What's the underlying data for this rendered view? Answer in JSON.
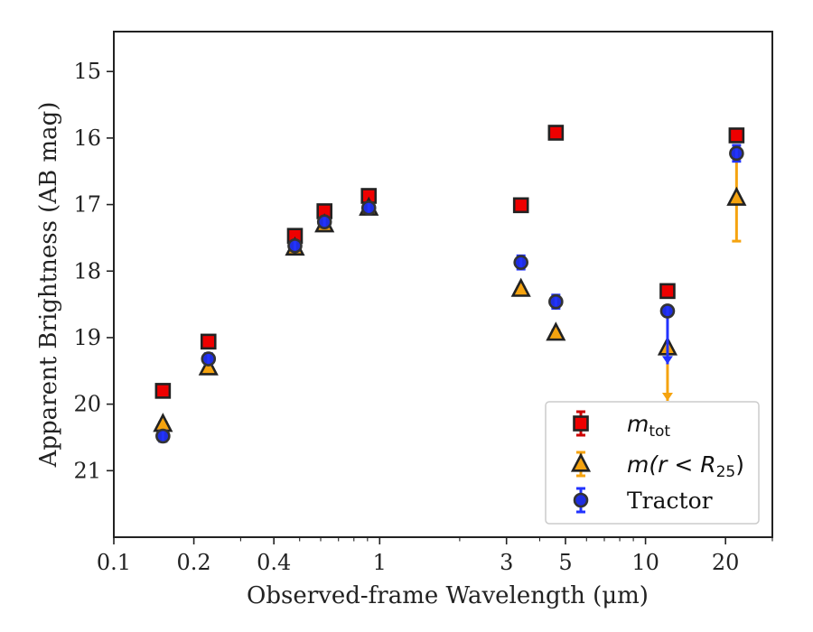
{
  "chart_data": {
    "type": "scatter",
    "title": "",
    "xlabel": "Observed-frame Wavelength (μm)",
    "ylabel": "Apparent Brightness (AB mag)",
    "xscale": "log",
    "xlim": [
      0.1,
      30
    ],
    "ylim": [
      22,
      14.4
    ],
    "y_inverted": true,
    "xticks": [
      0.1,
      0.2,
      0.4,
      1,
      3,
      5,
      10,
      20
    ],
    "xtick_labels": [
      "0.1",
      "0.2",
      "0.4",
      "1",
      "3",
      "5",
      "10",
      "20"
    ],
    "yticks": [
      15,
      16,
      17,
      18,
      19,
      20,
      21
    ],
    "ytick_labels": [
      "15",
      "16",
      "17",
      "18",
      "19",
      "20",
      "21"
    ],
    "grid": false,
    "legend_position": "lower-right",
    "series": [
      {
        "name": "m_tot",
        "legend_main": "m",
        "legend_sub": "tot",
        "marker": "square",
        "color": "#ee0000",
        "edge_color": "#222222",
        "errbar_color": "#cc0000",
        "points": [
          {
            "x": 0.153,
            "y": 19.8,
            "err": 0.04
          },
          {
            "x": 0.227,
            "y": 19.06,
            "err": 0.04
          },
          {
            "x": 0.48,
            "y": 17.47,
            "err": 0.04
          },
          {
            "x": 0.62,
            "y": 17.1,
            "err": 0.04
          },
          {
            "x": 0.91,
            "y": 16.87,
            "err": 0.04
          },
          {
            "x": 3.4,
            "y": 17.01,
            "err": 0.04
          },
          {
            "x": 4.6,
            "y": 15.92,
            "err": 0.03
          },
          {
            "x": 12.1,
            "y": 18.3,
            "err": 0.04
          },
          {
            "x": 22.0,
            "y": 15.96,
            "err": 0.04
          }
        ]
      },
      {
        "name": "m(r<R_25)",
        "legend_text": "m(r < R",
        "legend_sub": "25",
        "legend_close": ")",
        "marker": "triangle",
        "color": "#f5a30f",
        "edge_color": "#222222",
        "errbar_color": "#f5a30f",
        "points": [
          {
            "x": 0.153,
            "y": 20.3,
            "err": 0.03
          },
          {
            "x": 0.227,
            "y": 19.45,
            "err": 0.03
          },
          {
            "x": 0.48,
            "y": 17.65,
            "err": 0.03
          },
          {
            "x": 0.62,
            "y": 17.3,
            "err": 0.03
          },
          {
            "x": 0.91,
            "y": 17.05,
            "err": 0.03
          },
          {
            "x": 3.4,
            "y": 18.27,
            "err": 0.03
          },
          {
            "x": 4.6,
            "y": 18.93,
            "err": 0.04
          },
          {
            "x": 12.1,
            "y": 19.15,
            "err": 0.8,
            "upper_limit": true
          },
          {
            "x": 22.0,
            "y": 16.9,
            "err": 0.65
          }
        ]
      },
      {
        "name": "Tractor",
        "marker": "circle",
        "color": "#1f2ee0",
        "edge_color": "#333333",
        "errbar_color": "#2233ff",
        "points": [
          {
            "x": 0.153,
            "y": 20.48,
            "err": 0.08
          },
          {
            "x": 0.227,
            "y": 19.32,
            "err": 0.08
          },
          {
            "x": 0.48,
            "y": 17.62,
            "err": 0.06
          },
          {
            "x": 0.62,
            "y": 17.26,
            "err": 0.06
          },
          {
            "x": 0.91,
            "y": 17.05,
            "err": 0.06
          },
          {
            "x": 3.4,
            "y": 17.87,
            "err": 0.1
          },
          {
            "x": 4.6,
            "y": 18.46,
            "err": 0.1
          },
          {
            "x": 12.1,
            "y": 18.6,
            "err": 0.8,
            "upper_limit": true
          },
          {
            "x": 22.0,
            "y": 16.23,
            "err": 0.12
          }
        ]
      }
    ]
  },
  "legend": {
    "tractor_label": "Tractor"
  }
}
